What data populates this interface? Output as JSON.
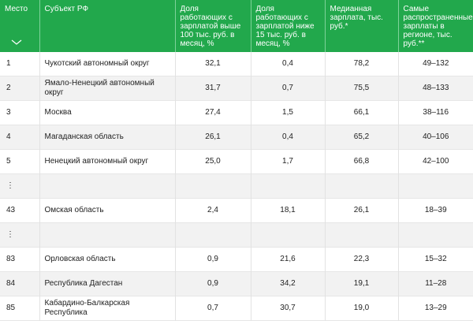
{
  "table": {
    "header": [
      "Место",
      "Субъект РФ",
      "Доля работающих с зарплатой выше 100 тыс. руб. в месяц, %",
      "Доля работающих с зарплатой ниже 15 тыс. руб. в месяц, %",
      "Медианная зарплата, тыс. руб.*",
      "Самые распространенные зарплаты в регионе, тыс. руб.**"
    ],
    "rows": [
      [
        "1",
        "Чукотский автономный округ",
        "32,1",
        "0,4",
        "78,2",
        "49–132"
      ],
      [
        "2",
        "Ямало-Ненецкий автономный округ",
        "31,7",
        "0,7",
        "75,5",
        "48–133"
      ],
      [
        "3",
        "Москва",
        "27,4",
        "1,5",
        "66,1",
        "38–116"
      ],
      [
        "4",
        "Магаданская область",
        "26,1",
        "0,4",
        "65,2",
        "40–106"
      ],
      [
        "5",
        "Ненецкий автономный округ",
        "25,0",
        "1,7",
        "66,8",
        "42–100"
      ],
      [
        "⋮"
      ],
      [
        "43",
        "Омская область",
        "2,4",
        "18,1",
        "26,1",
        "18–39"
      ],
      [
        "⋮"
      ],
      [
        "83",
        "Орловская область",
        "0,9",
        "21,6",
        "22,3",
        "15–32"
      ],
      [
        "84",
        "Республика Дагестан",
        "0,9",
        "34,2",
        "19,1",
        "11–28"
      ],
      [
        "85",
        "Кабардино-Балкарская Республика",
        "0,7",
        "30,7",
        "19,0",
        "13–29"
      ]
    ]
  }
}
